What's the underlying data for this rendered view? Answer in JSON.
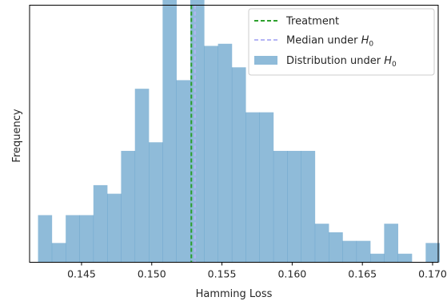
{
  "chart_data": {
    "type": "bar",
    "subtype": "histogram",
    "xlabel": "Hamming Loss",
    "ylabel": "Frequency",
    "xlim": [
      0.1413,
      0.1704
    ],
    "ylim": [
      0,
      12
    ],
    "y_ticks_shown": false,
    "x_ticks": [
      0.145,
      0.15,
      0.155,
      0.16,
      0.165,
      0.17
    ],
    "x_tick_labels": [
      "0.145",
      "0.150",
      "0.155",
      "0.160",
      "0.165",
      "0.170"
    ],
    "bin_start": 0.1419,
    "bin_width": 0.000986,
    "frequencies": [
      2.2,
      0.9,
      2.2,
      2.2,
      3.6,
      3.2,
      5.2,
      8.1,
      5.6,
      12.3,
      8.5,
      12.4,
      10.1,
      10.2,
      9.1,
      7.0,
      7.0,
      5.2,
      5.2,
      5.2,
      1.8,
      1.4,
      1.0,
      1.0,
      0.4,
      1.8,
      0.4,
      0,
      0.9
    ],
    "bar_color": "#1f77b4",
    "bar_opacity": 0.5,
    "vlines": [
      {
        "name": "Treatment",
        "x": 0.15282,
        "color": "#2ca02c",
        "style": "dashed"
      },
      {
        "name": "Median under H0",
        "x": 0.15308,
        "color": "#b4b4f5",
        "style": "dashed"
      }
    ],
    "legend": {
      "placement": "top-right",
      "entries": [
        {
          "label": "Treatment",
          "kind": "line",
          "color": "#2ca02c"
        },
        {
          "label_prefix": "Median under ",
          "label_math": "H",
          "label_sub": "0",
          "kind": "line",
          "color": "#b4b4f5"
        },
        {
          "label_prefix": "Distribution under ",
          "label_math": "H",
          "label_sub": "0",
          "kind": "patch",
          "color": "#1f77b4"
        }
      ]
    },
    "grid": false
  }
}
